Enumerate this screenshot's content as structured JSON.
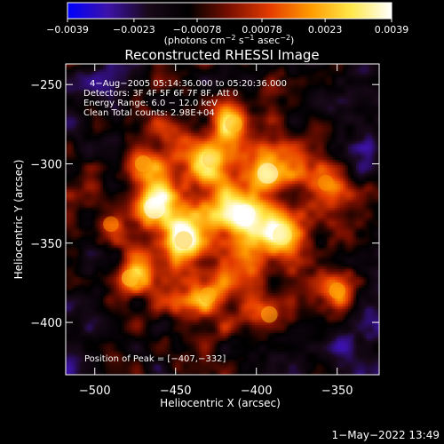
{
  "chart_data": {
    "type": "heatmap",
    "title": "Reconstructed RHESSI Image",
    "xlabel": "Heliocentric X (arcsec)",
    "ylabel": "Heliocentric Y (arcsec)",
    "xlim": [
      -518,
      -324
    ],
    "ylim": [
      -433,
      -237
    ],
    "x_ticks": [
      -500,
      -450,
      -400,
      -350
    ],
    "x_tick_labels": [
      "−500",
      "−450",
      "−400",
      "−350"
    ],
    "y_ticks": [
      -250,
      -300,
      -350,
      -400
    ],
    "y_tick_labels": [
      "−250",
      "−300",
      "−350",
      "−400"
    ],
    "colorbar": {
      "min": -0.0039,
      "max": 0.0039,
      "ticks": [
        -0.0039,
        -0.0023,
        -0.00078,
        0.00078,
        0.0023,
        0.0039
      ],
      "tick_labels": [
        "−0.0039",
        "−0.0023",
        "−0.00078",
        "0.00078",
        "0.0023",
        "0.0039"
      ],
      "units_prefix": "(photons cm",
      "units_exp1": "−2",
      "units_mid": " s",
      "units_exp2": "−1",
      "units_mid2": " asec",
      "units_exp3": "−2",
      "units_suffix": ")"
    },
    "info_lines": [
      "4−Aug−2005 05:14:36.000 to 05:20:36.000",
      "Detectors: 3F 4F 5F 6F 7F 8F, Att 0",
      "Energy Range: 6.0 − 12.0 keV",
      "Clean     Total counts: 2.98E+04"
    ],
    "peak_label": "Position of Peak = [−407,−332]",
    "peak": [
      -407,
      -332
    ],
    "sources": [
      {
        "x": -463,
        "y": -328,
        "peak": 0.0039
      },
      {
        "x": -407,
        "y": -332,
        "peak": 0.0039
      },
      {
        "x": -393,
        "y": -306,
        "peak": 0.0037
      },
      {
        "x": -384,
        "y": -345,
        "peak": 0.0032
      },
      {
        "x": -428,
        "y": -297,
        "peak": 0.0026
      },
      {
        "x": -445,
        "y": -348,
        "peak": 0.0026
      },
      {
        "x": -478,
        "y": -372,
        "peak": 0.0025
      },
      {
        "x": -414,
        "y": -275,
        "peak": 0.0024
      },
      {
        "x": -470,
        "y": -300,
        "peak": 0.0022
      },
      {
        "x": -430,
        "y": -383,
        "peak": 0.0022
      },
      {
        "x": -392,
        "y": -395,
        "peak": 0.0022
      },
      {
        "x": -350,
        "y": -380,
        "peak": 0.0021
      },
      {
        "x": -357,
        "y": -312,
        "peak": 0.0019
      },
      {
        "x": -490,
        "y": -338,
        "peak": 0.0018
      }
    ]
  },
  "timestamp": "1−May−2022 13:49",
  "colors": {
    "background": "#000000",
    "foreground": "#ffffff",
    "colormap": [
      "#0000ff",
      "#3c12a8",
      "#180818",
      "#000000",
      "#7a0f00",
      "#e53c00",
      "#ff9a00",
      "#ffe84a",
      "#ffffff"
    ]
  }
}
